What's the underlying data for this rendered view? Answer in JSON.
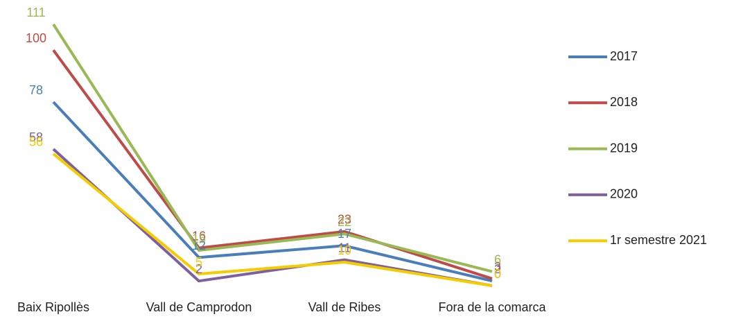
{
  "chart_data": {
    "type": "line",
    "categories": [
      "Baix Ripollès",
      "Vall de Camprodon",
      "Vall de Ribes",
      "Fora de la comarca"
    ],
    "ylim": [
      0,
      111
    ],
    "legend": "right",
    "series": [
      {
        "name": "2017",
        "color": "#4a7ebb",
        "values": [
          78,
          12,
          17,
          2
        ]
      },
      {
        "name": "2018",
        "color": "#be4b48",
        "values": [
          100,
          16,
          23,
          3
        ]
      },
      {
        "name": "2019",
        "color": "#98b954",
        "values": [
          111,
          15,
          22,
          6
        ]
      },
      {
        "name": "2020",
        "color": "#7d60a0",
        "values": [
          58,
          2,
          11,
          0
        ]
      },
      {
        "name": "1r semestre 2021",
        "color": "#f5cc00",
        "values": [
          56,
          5,
          10,
          0
        ]
      }
    ]
  }
}
